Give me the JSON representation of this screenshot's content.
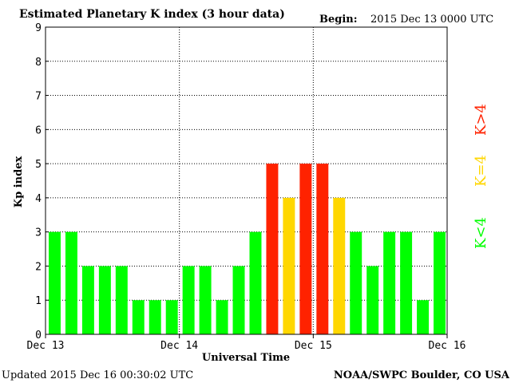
{
  "header": {
    "title": "Estimated Planetary K index (3 hour data)",
    "begin_label": "Begin:",
    "begin_value": "2015 Dec 13 0000 UTC"
  },
  "footer": {
    "updated": "Updated 2015 Dec 16 00:30:02 UTC",
    "credit": "NOAA/SWPC Boulder, CO USA"
  },
  "legend": {
    "high": "K>4",
    "equal": "K=4",
    "low": "K<4"
  },
  "colors": {
    "low": "#00ff00",
    "equal": "#ffd700",
    "high": "#ff2200",
    "grid": "#000000"
  },
  "chart_data": {
    "type": "bar",
    "title": "Estimated Planetary K index (3 hour data)",
    "xlabel": "Universal Time",
    "ylabel": "Kp index",
    "ylim": [
      0,
      9
    ],
    "yticks": [
      0,
      1,
      2,
      3,
      4,
      5,
      6,
      7,
      8,
      9
    ],
    "xticks": [
      "Dec 13",
      "Dec 14",
      "Dec 15",
      "Dec 16"
    ],
    "grid": true,
    "legend_position": "right",
    "categories": [
      "Dec 13 00",
      "Dec 13 03",
      "Dec 13 06",
      "Dec 13 09",
      "Dec 13 12",
      "Dec 13 15",
      "Dec 13 18",
      "Dec 13 21",
      "Dec 14 00",
      "Dec 14 03",
      "Dec 14 06",
      "Dec 14 09",
      "Dec 14 12",
      "Dec 14 15",
      "Dec 14 18",
      "Dec 14 21",
      "Dec 15 00",
      "Dec 15 03",
      "Dec 15 06",
      "Dec 15 09",
      "Dec 15 12",
      "Dec 15 15",
      "Dec 15 18",
      "Dec 15 21"
    ],
    "values": [
      3,
      3,
      2,
      2,
      2,
      1,
      1,
      1,
      2,
      2,
      1,
      2,
      3,
      5,
      4,
      5,
      5,
      4,
      3,
      2,
      3,
      3,
      1,
      3
    ]
  }
}
